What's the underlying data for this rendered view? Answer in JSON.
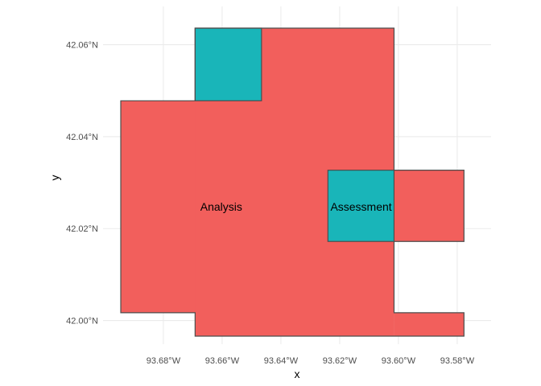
{
  "chart_data": {
    "type": "map",
    "xlabel": "x",
    "ylabel": "y",
    "xlim": [
      -93.6945,
      -93.5745
    ],
    "ylim": [
      41.9966,
      42.065
    ],
    "x_ticks": [
      {
        "value": -93.68,
        "label": "93.68°W"
      },
      {
        "value": -93.66,
        "label": "93.66°W"
      },
      {
        "value": -93.64,
        "label": "93.64°W"
      },
      {
        "value": -93.62,
        "label": "93.62°W"
      },
      {
        "value": -93.6,
        "label": "93.60°W"
      },
      {
        "value": -93.58,
        "label": "93.58°W"
      }
    ],
    "y_ticks": [
      {
        "value": 42.0,
        "label": "42.00°N"
      },
      {
        "value": 42.02,
        "label": "42.02°N"
      },
      {
        "value": 42.04,
        "label": "42.04°N"
      },
      {
        "value": 42.06,
        "label": "42.06°N"
      }
    ],
    "grid": true,
    "colors": {
      "Analysis": "#f25f5c",
      "Assessment": "#19b5b9",
      "border": "#4d4d4d",
      "grid": "#ebebeb"
    },
    "cells": [
      {
        "category": "Analysis",
        "xmin": -93.6945,
        "xmax": -93.6015,
        "ymin": 42.0017,
        "ymax": 42.0478
      },
      {
        "category": "Analysis",
        "xmin": -93.6692,
        "xmax": -93.6015,
        "ymin": 41.9966,
        "ymax": 42.0636
      },
      {
        "category": "Analysis",
        "xmin": -93.6015,
        "xmax": -93.5777,
        "ymin": 41.9966,
        "ymax": 42.0017
      },
      {
        "category": "Analysis",
        "xmin": -93.6015,
        "xmax": -93.5777,
        "ymin": 42.0172,
        "ymax": 42.0327
      },
      {
        "category": "Assessment",
        "xmin": -93.6692,
        "xmax": -93.6466,
        "ymin": 42.0478,
        "ymax": 42.0636
      },
      {
        "category": "Assessment",
        "xmin": -93.624,
        "xmax": -93.6015,
        "ymin": 42.0172,
        "ymax": 42.0327
      }
    ],
    "outline": [
      [
        -93.6692,
        42.0636
      ],
      [
        -93.6015,
        42.0636
      ],
      [
        -93.6015,
        42.0327
      ],
      [
        -93.5777,
        42.0327
      ],
      [
        -93.5777,
        42.0172
      ],
      [
        -93.6015,
        42.0172
      ],
      [
        -93.6015,
        42.0017
      ],
      [
        -93.5777,
        42.0017
      ],
      [
        -93.5777,
        41.9966
      ],
      [
        -93.6692,
        41.9966
      ],
      [
        -93.6692,
        42.0017
      ],
      [
        -93.6945,
        42.0017
      ],
      [
        -93.6945,
        42.0478
      ],
      [
        -93.6692,
        42.0478
      ]
    ],
    "labels": [
      {
        "text": "Analysis",
        "x": -93.6603,
        "y": 42.0248
      },
      {
        "text": "Assessment",
        "x": -93.6127,
        "y": 42.0248
      }
    ]
  }
}
